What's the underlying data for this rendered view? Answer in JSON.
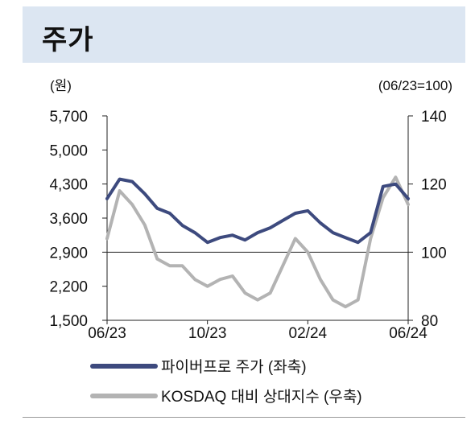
{
  "header": {
    "title": "주가"
  },
  "chart_data": {
    "type": "line",
    "left_axis": {
      "unit_label": "(원)",
      "ticks": [
        "5,700",
        "5,000",
        "4,300",
        "3,600",
        "2,900",
        "2,200",
        "1,500"
      ],
      "tick_values": [
        5700,
        5000,
        4300,
        3600,
        2900,
        2200,
        1500
      ],
      "range": [
        1500,
        5700
      ]
    },
    "right_axis": {
      "unit_label": "(06/23=100)",
      "ticks": [
        "140",
        "120",
        "100",
        "80"
      ],
      "tick_values": [
        140,
        120,
        100,
        80
      ],
      "range": [
        80,
        140
      ]
    },
    "x_axis": {
      "ticks": [
        "06/23",
        "10/23",
        "02/24",
        "06/24"
      ],
      "range": [
        "2023-06",
        "2024-06"
      ]
    },
    "reference_line": {
      "axis": "right",
      "value": 100
    },
    "series": [
      {
        "name": "파이버프로 주가 (좌축)",
        "axis": "left",
        "color": "#3d4a7e",
        "x": [
          0,
          0.5,
          1,
          1.5,
          2,
          2.5,
          3,
          3.5,
          4,
          4.5,
          5,
          5.5,
          6,
          6.5,
          7,
          7.5,
          8,
          8.5,
          9,
          9.5,
          10,
          10.5,
          11,
          11.5,
          12
        ],
        "values": [
          4000,
          4400,
          4350,
          4100,
          3800,
          3700,
          3450,
          3300,
          3100,
          3200,
          3250,
          3150,
          3300,
          3400,
          3550,
          3700,
          3750,
          3500,
          3300,
          3200,
          3100,
          3300,
          4250,
          4300,
          4000
        ]
      },
      {
        "name": "KOSDAQ 대비 상대지수 (우축)",
        "axis": "right",
        "color": "#b3b3b3",
        "x": [
          0,
          0.5,
          1,
          1.5,
          2,
          2.5,
          3,
          3.5,
          4,
          4.5,
          5,
          5.5,
          6,
          6.5,
          7,
          7.5,
          8,
          8.5,
          9,
          9.5,
          10,
          10.5,
          11,
          11.5,
          12
        ],
        "values": [
          104,
          118,
          114,
          108,
          98,
          96,
          96,
          92,
          90,
          92,
          93,
          88,
          86,
          88,
          96,
          104,
          100,
          92,
          86,
          84,
          86,
          104,
          116,
          122,
          114
        ]
      }
    ]
  }
}
